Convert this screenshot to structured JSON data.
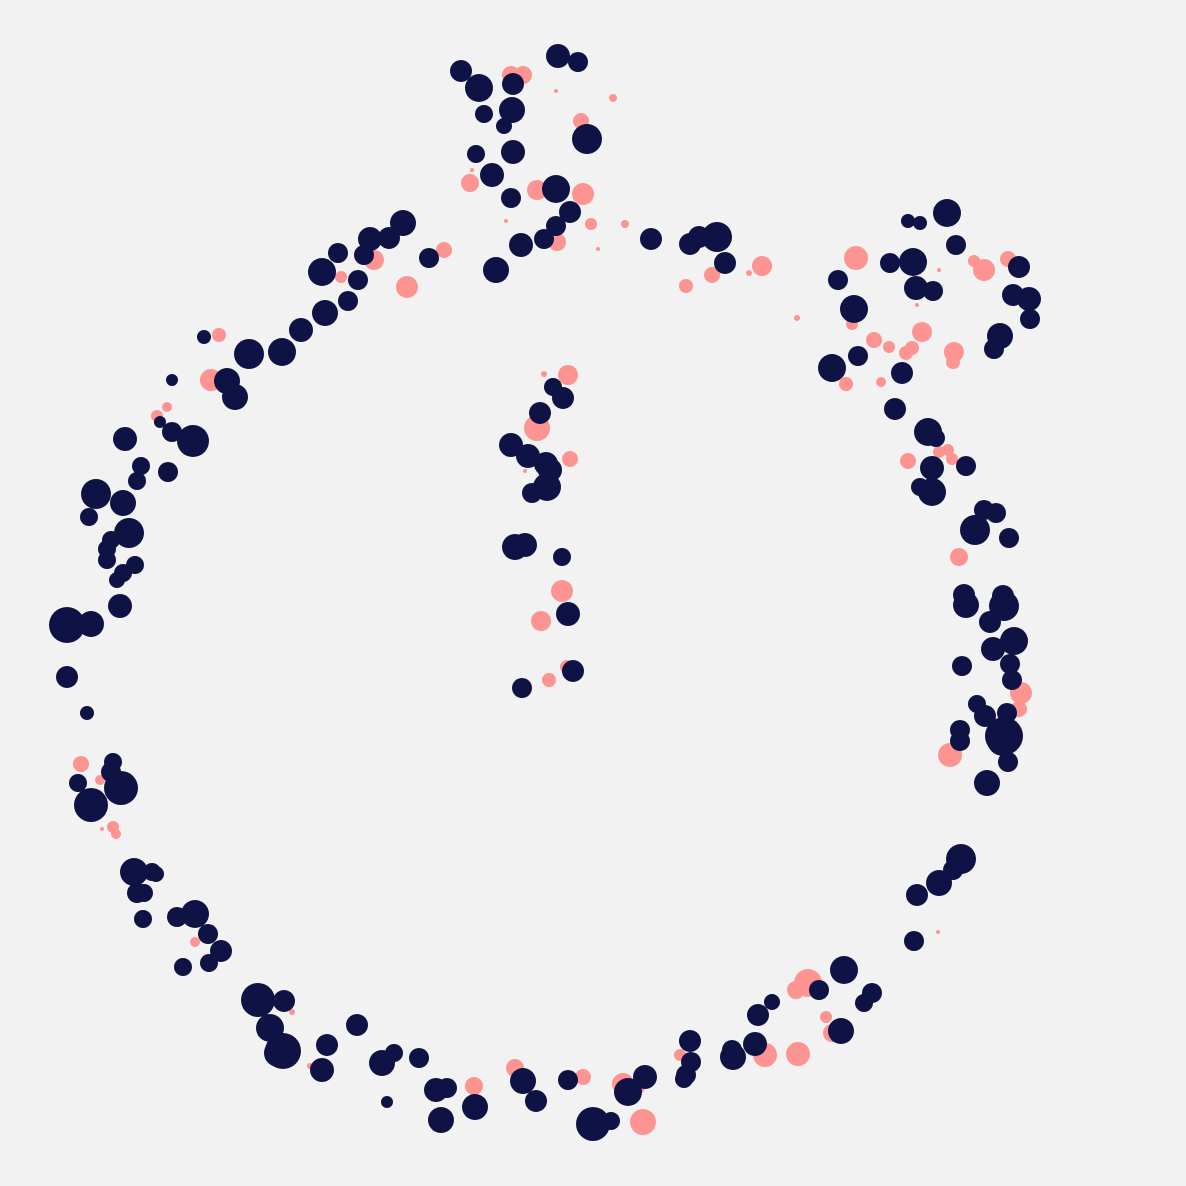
{
  "artwork": {
    "subject": "stopwatch-icon",
    "colors": {
      "background": "#f2f2f2",
      "primary_dot": "#0f1245",
      "accent_dot": "#fd9491"
    }
  }
}
